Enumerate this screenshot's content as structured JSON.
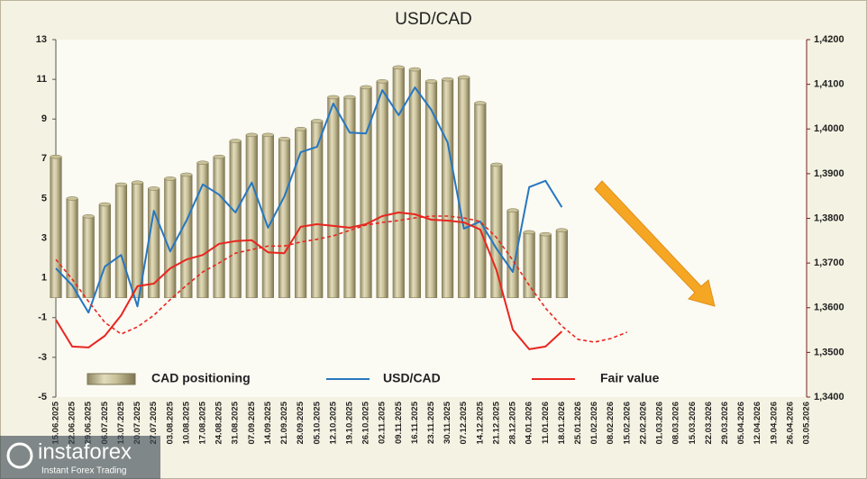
{
  "chart_data": {
    "type": "bar",
    "title": "USD/CAD",
    "categories": [
      "15.06.2025",
      "22.06.2025",
      "29.06.2025",
      "06.07.2025",
      "13.07.2025",
      "20.07.2025",
      "27.07.2025",
      "03.08.2025",
      "10.08.2025",
      "17.08.2025",
      "24.08.2025",
      "31.08.2025",
      "07.09.2025",
      "14.09.2025",
      "21.09.2025",
      "28.09.2025",
      "05.10.2025",
      "12.10.2025",
      "19.10.2025",
      "26.10.2025",
      "02.11.2025",
      "09.11.2025",
      "16.11.2025",
      "23.11.2025",
      "30.11.2025",
      "07.12.2025",
      "14.12.2025",
      "21.12.2025",
      "28.12.2025",
      "04.01.2026",
      "11.01.2026",
      "18.01.2026",
      "25.01.2026",
      "01.02.2026",
      "08.02.2026",
      "15.02.2026",
      "22.02.2026",
      "01.03.2026",
      "08.03.2026",
      "15.03.2026",
      "22.03.2026",
      "29.03.2026",
      "05.04.2026",
      "12.04.2026",
      "19.04.2026",
      "26.04.2026",
      "03.05.2026"
    ],
    "series": [
      {
        "name": "CAD positioning",
        "type": "bar",
        "color": "#c9c199",
        "values": [
          7.1,
          5.0,
          4.1,
          4.7,
          5.7,
          5.8,
          5.5,
          6.0,
          6.2,
          6.8,
          7.1,
          7.9,
          8.2,
          8.2,
          8.0,
          8.5,
          8.9,
          10.1,
          10.1,
          10.6,
          10.9,
          11.6,
          11.5,
          10.9,
          11.0,
          11.1,
          9.8,
          6.7,
          4.4,
          3.3,
          3.2,
          3.4,
          null,
          null,
          null,
          null,
          null,
          null,
          null,
          null,
          null,
          null,
          null,
          null,
          null,
          null,
          null
        ]
      },
      {
        "name": "USD/CAD",
        "type": "line",
        "axis": "y2",
        "color": "#2677c0",
        "values": [
          1.3688,
          1.365,
          1.3589,
          1.3692,
          1.3718,
          1.3603,
          1.3817,
          1.3726,
          1.3795,
          1.3876,
          1.3853,
          1.3813,
          1.388,
          1.3779,
          1.3849,
          1.3948,
          1.396,
          1.4057,
          1.3992,
          1.399,
          1.4087,
          1.4031,
          1.4093,
          1.4043,
          1.397,
          1.3777,
          1.3793,
          1.3732,
          1.368,
          1.387,
          1.3884,
          1.3825,
          null,
          null,
          null,
          null,
          null,
          null,
          null,
          null,
          null,
          null,
          null,
          null,
          null,
          null,
          null
        ]
      },
      {
        "name": "Fair value",
        "type": "line",
        "axis": "y2",
        "color": "#e8261f",
        "values": [
          1.3573,
          1.3513,
          1.3511,
          1.3537,
          1.3583,
          1.3648,
          1.3654,
          1.3688,
          1.3708,
          1.3718,
          1.3743,
          1.3749,
          1.3751,
          1.3724,
          1.3722,
          1.3781,
          1.3787,
          1.3783,
          1.3779,
          1.3787,
          1.3805,
          1.3813,
          1.3809,
          1.3797,
          1.3795,
          1.3791,
          1.3775,
          1.3684,
          1.3551,
          1.3507,
          1.3513,
          1.3547,
          null,
          null,
          null,
          null,
          null,
          null,
          null,
          null,
          null,
          null,
          null,
          null,
          null,
          null,
          null
        ]
      },
      {
        "type": "line",
        "axis": "y2",
        "color": "#e8261f",
        "dashed": true,
        "values": [
          1.3708,
          1.3664,
          1.3614,
          1.3567,
          1.3541,
          1.3557,
          1.3583,
          1.3618,
          1.365,
          1.368,
          1.37,
          1.3722,
          1.373,
          1.3738,
          1.3738,
          1.3747,
          1.3753,
          1.3761,
          1.3773,
          1.3785,
          1.3791,
          1.3795,
          1.3801,
          1.3805,
          1.3805,
          1.3801,
          1.3793,
          1.3757,
          1.3706,
          1.365,
          1.3599,
          1.3559,
          1.3529,
          1.3523,
          1.3531,
          1.3545,
          null,
          null,
          null,
          null,
          null,
          null,
          null,
          null,
          null,
          null,
          null
        ]
      }
    ],
    "ylim": [
      -5,
      13
    ],
    "yticks": [
      -5,
      -3,
      -1,
      1,
      3,
      5,
      7,
      9,
      11,
      13
    ],
    "y2lim": [
      1.34,
      1.42
    ],
    "y2ticks": [
      {
        "value": 1.34,
        "label": "1,3400"
      },
      {
        "value": 1.35,
        "label": "1,3500"
      },
      {
        "value": 1.36,
        "label": "1,3600"
      },
      {
        "value": 1.37,
        "label": "1,3700"
      },
      {
        "value": 1.38,
        "label": "1,3800"
      },
      {
        "value": 1.39,
        "label": "1,3900"
      },
      {
        "value": 1.4,
        "label": "1,4000"
      },
      {
        "value": 1.41,
        "label": "1,4100"
      },
      {
        "value": 1.42,
        "label": "1,4200"
      }
    ],
    "grid": false,
    "legend": "bottom"
  },
  "watermark": {
    "brand": "instaforex",
    "tagline": "Instant Forex Trading"
  }
}
